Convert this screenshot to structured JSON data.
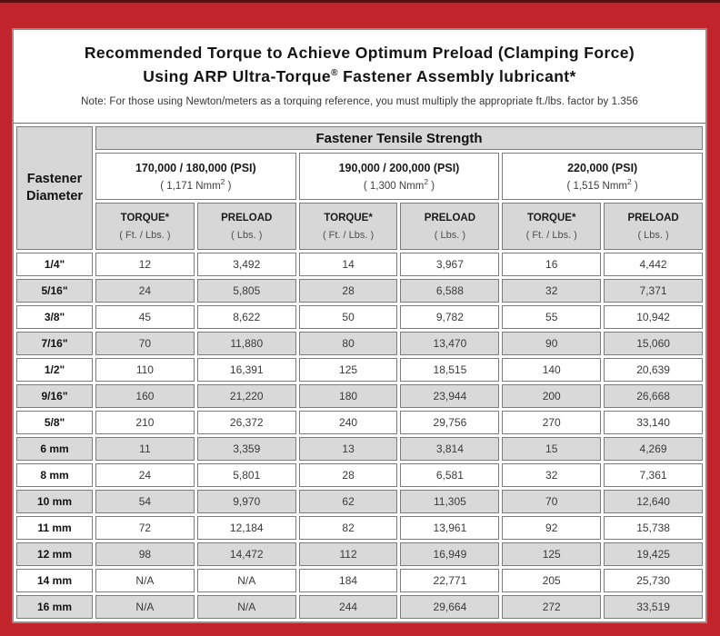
{
  "page": {
    "title_line1": "Recommended Torque to Achieve Optimum Preload (Clamping Force)",
    "title_line2_pre": "Using ARP Ultra-Torque",
    "title_line2_sup": "®",
    "title_line2_post": " Fastener Assembly lubricant*",
    "note": "Note: For those using Newton/meters as a torquing reference, you must multiply the appropriate ft./lbs. factor by 1.356"
  },
  "colors": {
    "frame_red": "#c2242b",
    "frame_dark_top": "#5a1112",
    "cell_gray": "#d9d9d9",
    "cell_border": "#7c7c7c"
  },
  "table": {
    "corner_header": "Fastener\nDiameter",
    "tensile_header": "Fastener Tensile Strength",
    "strength_groups": [
      {
        "psi": "170,000 / 180,000 (PSI)",
        "nmm_pre": "( 1,171 Nmm",
        "nmm_sup": "2",
        "nmm_post": " )"
      },
      {
        "psi": "190,000 / 200,000 (PSI)",
        "nmm_pre": "( 1,300 Nmm",
        "nmm_sup": "2",
        "nmm_post": " )"
      },
      {
        "psi": "220,000 (PSI)",
        "nmm_pre": "( 1,515 Nmm",
        "nmm_sup": "2",
        "nmm_post": " )"
      }
    ],
    "col_headers": [
      {
        "title": "TORQUE*",
        "unit": "( Ft. / Lbs. )"
      },
      {
        "title": "PRELOAD",
        "unit": "( Lbs. )"
      },
      {
        "title": "TORQUE*",
        "unit": "( Ft. / Lbs. )"
      },
      {
        "title": "PRELOAD",
        "unit": "( Lbs. )"
      },
      {
        "title": "TORQUE*",
        "unit": "( Ft. / Lbs. )"
      },
      {
        "title": "PRELOAD",
        "unit": "( Lbs. )"
      }
    ],
    "rows": [
      {
        "diameter": "1/4\"",
        "values": [
          "12",
          "3,492",
          "14",
          "3,967",
          "16",
          "4,442"
        ]
      },
      {
        "diameter": "5/16\"",
        "values": [
          "24",
          "5,805",
          "28",
          "6,588",
          "32",
          "7,371"
        ]
      },
      {
        "diameter": "3/8\"",
        "values": [
          "45",
          "8,622",
          "50",
          "9,782",
          "55",
          "10,942"
        ]
      },
      {
        "diameter": "7/16\"",
        "values": [
          "70",
          "11,880",
          "80",
          "13,470",
          "90",
          "15,060"
        ]
      },
      {
        "diameter": "1/2\"",
        "values": [
          "110",
          "16,391",
          "125",
          "18,515",
          "140",
          "20,639"
        ]
      },
      {
        "diameter": "9/16\"",
        "values": [
          "160",
          "21,220",
          "180",
          "23,944",
          "200",
          "26,668"
        ]
      },
      {
        "diameter": "5/8\"",
        "values": [
          "210",
          "26,372",
          "240",
          "29,756",
          "270",
          "33,140"
        ]
      },
      {
        "diameter": "6 mm",
        "values": [
          "11",
          "3,359",
          "13",
          "3,814",
          "15",
          "4,269"
        ]
      },
      {
        "diameter": "8 mm",
        "values": [
          "24",
          "5,801",
          "28",
          "6,581",
          "32",
          "7,361"
        ]
      },
      {
        "diameter": "10 mm",
        "values": [
          "54",
          "9,970",
          "62",
          "11,305",
          "70",
          "12,640"
        ]
      },
      {
        "diameter": "11 mm",
        "values": [
          "72",
          "12,184",
          "82",
          "13,961",
          "92",
          "15,738"
        ]
      },
      {
        "diameter": "12 mm",
        "values": [
          "98",
          "14,472",
          "112",
          "16,949",
          "125",
          "19,425"
        ]
      },
      {
        "diameter": "14 mm",
        "values": [
          "N/A",
          "N/A",
          "184",
          "22,771",
          "205",
          "25,730"
        ]
      },
      {
        "diameter": "16 mm",
        "values": [
          "N/A",
          "N/A",
          "244",
          "29,664",
          "272",
          "33,519"
        ]
      }
    ]
  }
}
